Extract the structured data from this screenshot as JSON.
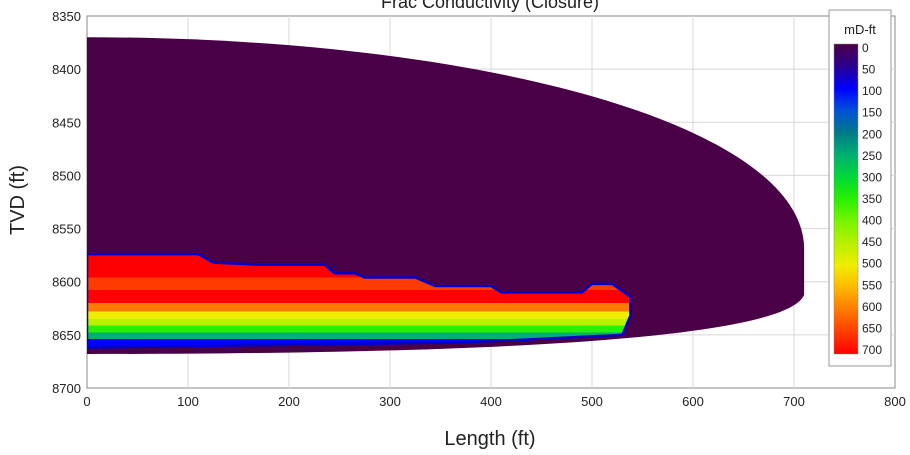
{
  "chart_data": {
    "type": "heatmap",
    "title": "Frac Conductivity (Closure)",
    "xlabel": "Length (ft)",
    "ylabel": "TVD (ft)",
    "xlim": [
      0,
      800
    ],
    "ylim": [
      8350,
      8700
    ],
    "y_inverted": true,
    "x_ticks": [
      0,
      100,
      200,
      300,
      400,
      500,
      600,
      700,
      800
    ],
    "y_ticks": [
      8350,
      8400,
      8450,
      8500,
      8550,
      8600,
      8650,
      8700
    ],
    "grid": true,
    "colorbar": {
      "title": "mD-ft",
      "ticks": [
        0,
        50,
        100,
        150,
        200,
        250,
        300,
        350,
        400,
        450,
        500,
        550,
        600,
        650,
        700
      ],
      "colors": [
        "#4a0046",
        "#2b0090",
        "#0000ff",
        "#0050d8",
        "#007a88",
        "#00b070",
        "#00d838",
        "#28f000",
        "#78f400",
        "#b8f000",
        "#f0ee00",
        "#ffb800",
        "#ff7a00",
        "#ff3c00",
        "#ff0000"
      ]
    },
    "fracture_envelope": {
      "value_mD_ft": 0,
      "top_tvd": 8370,
      "bottom_tvd": 8668,
      "max_length": 710,
      "tip_center_tvd": 8605
    },
    "proppant_region": {
      "top_profile": [
        [
          0,
          8574
        ],
        [
          110,
          8574
        ],
        [
          125,
          8582
        ],
        [
          170,
          8584
        ],
        [
          235,
          8584
        ],
        [
          245,
          8592
        ],
        [
          265,
          8592
        ],
        [
          275,
          8596
        ],
        [
          325,
          8596
        ],
        [
          345,
          8604
        ],
        [
          400,
          8604
        ],
        [
          410,
          8610
        ],
        [
          490,
          8610
        ],
        [
          500,
          8602
        ],
        [
          520,
          8602
        ],
        [
          538,
          8614
        ]
      ],
      "bottom_tvd": 8662,
      "max_length": 538,
      "bands": [
        {
          "tvd_top": 8574,
          "tvd_bottom": 8596,
          "value_mD_ft": 680
        },
        {
          "tvd_top": 8596,
          "tvd_bottom": 8608,
          "value_mD_ft": 640
        },
        {
          "tvd_top": 8608,
          "tvd_bottom": 8620,
          "value_mD_ft": 700
        },
        {
          "tvd_top": 8620,
          "tvd_bottom": 8628,
          "value_mD_ft": 580
        },
        {
          "tvd_top": 8628,
          "tvd_bottom": 8635,
          "value_mD_ft": 520
        },
        {
          "tvd_top": 8635,
          "tvd_bottom": 8641,
          "value_mD_ft": 450
        },
        {
          "tvd_top": 8641,
          "tvd_bottom": 8648,
          "value_mD_ft": 350
        },
        {
          "tvd_top": 8648,
          "tvd_bottom": 8654,
          "value_mD_ft": 250
        },
        {
          "tvd_top": 8654,
          "tvd_bottom": 8662,
          "value_mD_ft": 120
        }
      ]
    }
  }
}
